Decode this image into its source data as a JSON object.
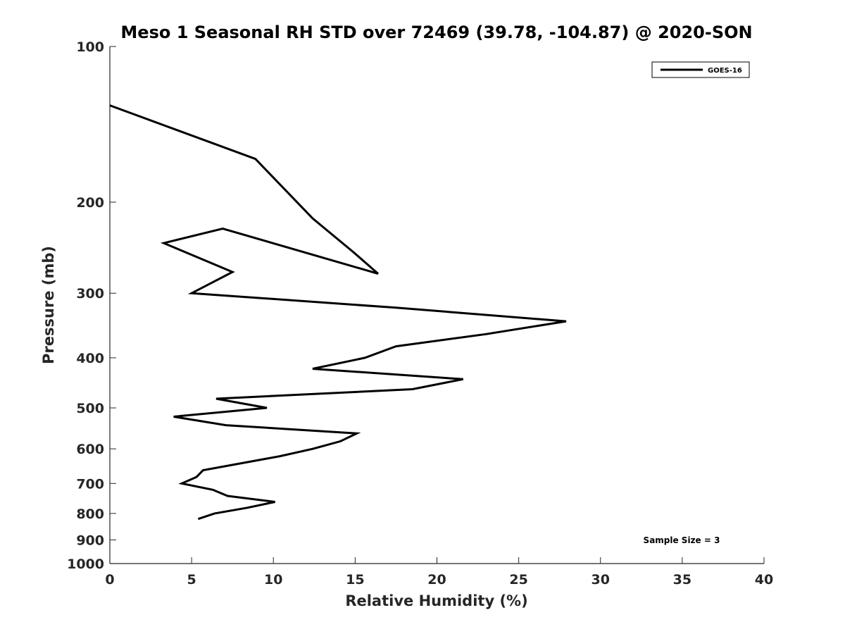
{
  "chart_data": {
    "type": "line",
    "title": "Meso 1 Seasonal RH STD over 72469 (39.78, -104.87) @ 2020-SON",
    "xlabel": "Relative Humidity (%)",
    "ylabel": "Pressure (mb)",
    "xlim": [
      0,
      40
    ],
    "ylim": [
      100,
      1000
    ],
    "y_scale": "log",
    "y_reversed": true,
    "x_ticks": [
      0,
      5,
      10,
      15,
      20,
      25,
      30,
      35,
      40
    ],
    "y_ticks": [
      100,
      200,
      300,
      400,
      500,
      600,
      700,
      800,
      900,
      1000
    ],
    "grid": false,
    "legend_position": "top-right",
    "annotation": "Sample Size = 3",
    "series": [
      {
        "name": "GOES-16",
        "color": "#000000",
        "x": [
          0,
          8.9,
          12.4,
          14.9,
          16.4,
          6.9,
          3.3,
          7.5,
          5.0,
          17.5,
          27.9,
          23.0,
          17.5,
          15.6,
          12.4,
          21.6,
          18.5,
          6.5,
          9.6,
          3.9,
          7.1,
          15.1,
          14.1,
          12.4,
          10.4,
          5.7,
          5.3,
          4.4,
          6.3,
          7.2,
          10.1,
          8.4,
          6.4,
          5.4
        ],
        "y": [
          130,
          165,
          215,
          250,
          275,
          225,
          240,
          273,
          300,
          320,
          340,
          360,
          380,
          400,
          420,
          440,
          460,
          480,
          500,
          520,
          540,
          560,
          580,
          600,
          620,
          660,
          680,
          700,
          720,
          740,
          760,
          780,
          800,
          820
        ]
      }
    ]
  }
}
